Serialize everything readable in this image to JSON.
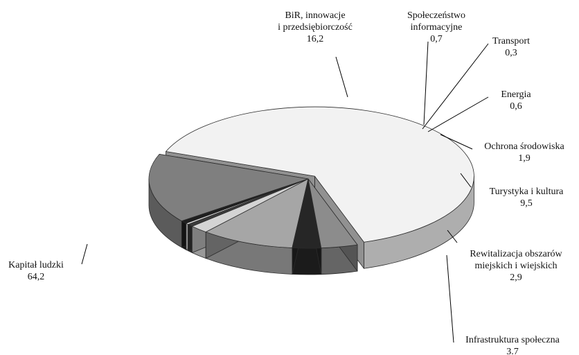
{
  "chart_data": {
    "type": "pie",
    "style": "3d-exploded",
    "decimal_separator": ",",
    "slices": [
      {
        "name": "Kapitał ludzki",
        "value": 64.2,
        "value_label": "64,2",
        "color": "#f2f2f2"
      },
      {
        "name": "BiR, innowacje i przedsiębiorczość",
        "value": 16.2,
        "value_label": "16,2",
        "color": "#7f7f7f"
      },
      {
        "name": "Społeczeństwo informacyjne",
        "value": 0.7,
        "value_label": "0,7",
        "color": "#1f1f1f"
      },
      {
        "name": "Transport",
        "value": 0.3,
        "value_label": "0,3",
        "color": "#efefef"
      },
      {
        "name": "Energia",
        "value": 0.6,
        "value_label": "0,6",
        "color": "#3b3b3b"
      },
      {
        "name": "Ochrona środowiska",
        "value": 1.9,
        "value_label": "1,9",
        "color": "#d4d4d4"
      },
      {
        "name": "Turystyka i kultura",
        "value": 9.5,
        "value_label": "9,5",
        "color": "#a6a6a6"
      },
      {
        "name": "Rewitalizacja obszarów miejskich i wiejskich",
        "value": 2.9,
        "value_label": "2,9",
        "color": "#262626"
      },
      {
        "name": "Infrastruktura społeczna",
        "value": 3.7,
        "value_label": "3.7",
        "color": "#8c8c8c"
      }
    ],
    "labels": [
      {
        "lines": [
          "Kapitał ludzki",
          "64,2"
        ]
      },
      {
        "lines": [
          "BiR, innowacje",
          "i przedsiębiorczość",
          "16,2"
        ]
      },
      {
        "lines": [
          "Społeczeństwo",
          "informacyjne",
          "0,7"
        ]
      },
      {
        "lines": [
          "Transport",
          "0,3"
        ]
      },
      {
        "lines": [
          "Energia",
          "0,6"
        ]
      },
      {
        "lines": [
          "Ochrona środowiska",
          "1,9"
        ]
      },
      {
        "lines": [
          "Turystyka i kultura",
          "9,5"
        ]
      },
      {
        "lines": [
          "Rewitalizacja obszarów",
          "miejskich i wiejskich",
          "2,9"
        ]
      },
      {
        "lines": [
          "Infrastruktura społeczna",
          "3.7"
        ]
      }
    ]
  }
}
